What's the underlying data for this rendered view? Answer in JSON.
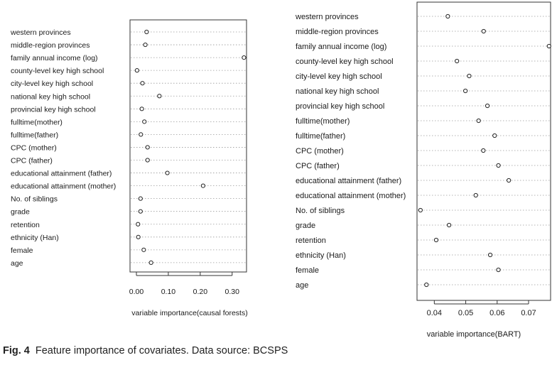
{
  "caption": {
    "label": "Fig. 4",
    "text": "Feature importance of covariates. Data source: BCSPS"
  },
  "chart_data": [
    {
      "type": "scatter",
      "xlabel": "variable importance(causal forests)",
      "xlim": [
        -0.02,
        0.345
      ],
      "xticks": [
        "0.00",
        "0.10",
        "0.20",
        "0.30"
      ],
      "grid": "horizontal dotted",
      "marker": "open circle",
      "categories": [
        "western provinces",
        "middle-region provinces",
        "family annual income (log)",
        "county-level key high school",
        "city-level key high school",
        "national key high school",
        "provincial key high school",
        "fulltime(mother)",
        "fulltime(father)",
        "CPC (mother)",
        "CPC (father)",
        "educational attainment (father)",
        "educational attainment (mother)",
        "No. of siblings",
        "grade",
        "retention",
        "ethnicity (Han)",
        "female",
        "age"
      ],
      "values": [
        0.032,
        0.028,
        0.337,
        0.002,
        0.019,
        0.072,
        0.017,
        0.025,
        0.014,
        0.035,
        0.035,
        0.097,
        0.209,
        0.013,
        0.013,
        0.005,
        0.006,
        0.023,
        0.046
      ]
    },
    {
      "type": "scatter",
      "xlabel": "variable importance(BART)",
      "xlim": [
        0.0345,
        0.077
      ],
      "xticks": [
        "0.04",
        "0.05",
        "0.06",
        "0.07"
      ],
      "grid": "horizontal dotted",
      "marker": "open circle",
      "categories": [
        "western provinces",
        "middle-region provinces",
        "family annual income (log)",
        "county-level key high school",
        "city-level key high school",
        "national key high school",
        "provincial key high school",
        "fulltime(mother)",
        "fulltime(father)",
        "CPC (mother)",
        "CPC (father)",
        "educational attainment (father)",
        "educational attainment (mother)",
        "No. of siblings",
        "grade",
        "retention",
        "ethnicity (Han)",
        "female",
        "age"
      ],
      "values": [
        0.0443,
        0.0557,
        0.0765,
        0.0472,
        0.0511,
        0.0499,
        0.0569,
        0.0541,
        0.0592,
        0.0556,
        0.0604,
        0.0637,
        0.0532,
        0.0356,
        0.0447,
        0.0406,
        0.0578,
        0.0604,
        0.0375
      ]
    }
  ]
}
